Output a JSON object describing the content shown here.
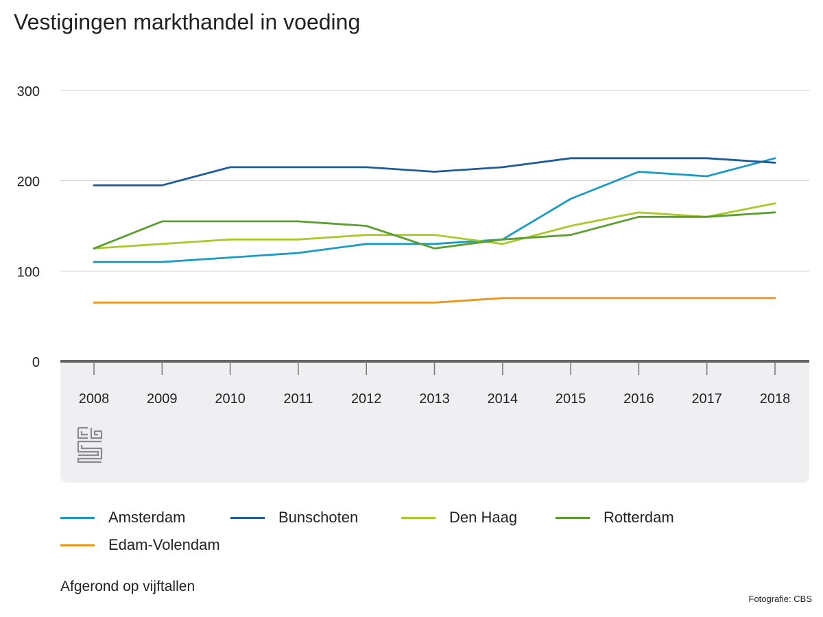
{
  "title": "Vestigingen markthandel in voeding",
  "note": "Afgerond op vijftallen",
  "credit": "Fotografie: CBS",
  "logo_label": "cbs",
  "chart_data": {
    "type": "line",
    "title": "Vestigingen markthandel in voeding",
    "xlabel": "",
    "ylabel": "",
    "x": [
      "2008",
      "2009",
      "2010",
      "2011",
      "2012",
      "2013",
      "2014",
      "2015",
      "2016",
      "2017",
      "2018"
    ],
    "ylim": [
      0,
      300
    ],
    "yticks": [
      0,
      100,
      200,
      300
    ],
    "grid": true,
    "legend_position": "bottom",
    "series": [
      {
        "name": "Amsterdam",
        "color": "#1a9bc4",
        "values": [
          110,
          110,
          115,
          120,
          130,
          130,
          135,
          180,
          210,
          205,
          225
        ]
      },
      {
        "name": "Bunschoten",
        "color": "#1d5c99",
        "values": [
          195,
          195,
          215,
          215,
          215,
          210,
          215,
          225,
          225,
          225,
          220
        ]
      },
      {
        "name": "Den Haag",
        "color": "#a8c92a",
        "values": [
          125,
          130,
          135,
          135,
          140,
          140,
          130,
          150,
          165,
          160,
          175
        ]
      },
      {
        "name": "Rotterdam",
        "color": "#5a9e2f",
        "values": [
          125,
          155,
          155,
          155,
          150,
          125,
          135,
          140,
          160,
          160,
          165
        ]
      },
      {
        "name": "Edam-Volendam",
        "color": "#e8961e",
        "values": [
          65,
          65,
          65,
          65,
          65,
          65,
          70,
          70,
          70,
          70,
          70
        ]
      }
    ]
  }
}
